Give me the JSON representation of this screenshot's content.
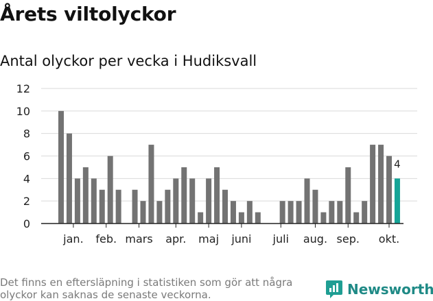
{
  "title": "Årets viltolyckor",
  "subtitle": "Antal olyckor per vecka i Hudiksvall",
  "note": "Det finns en eftersläpning i statistiken som gör att några olyckor kan saknas de senaste veckorna.",
  "brand": {
    "name": "Newsworthy",
    "color": "#1f9e93"
  },
  "colors": {
    "bar": "#737373",
    "highlight": "#15a497",
    "grid": "#d9d9d9"
  },
  "chart_data": {
    "type": "bar",
    "x": [
      1,
      2,
      3,
      4,
      5,
      6,
      7,
      8,
      9,
      10,
      11,
      12,
      13,
      14,
      15,
      16,
      17,
      18,
      19,
      20,
      21,
      22,
      23,
      24,
      25,
      26,
      27,
      28,
      29,
      30,
      31,
      32,
      33,
      34,
      35,
      36,
      37,
      38,
      39,
      40,
      41,
      42
    ],
    "values": [
      10,
      8,
      4,
      5,
      4,
      3,
      6,
      3,
      0,
      3,
      2,
      7,
      2,
      3,
      4,
      5,
      4,
      1,
      4,
      5,
      3,
      2,
      1,
      2,
      1,
      0,
      0,
      2,
      2,
      2,
      4,
      3,
      1,
      2,
      2,
      5,
      1,
      2,
      7,
      7,
      6,
      4
    ],
    "highlight_index": 41,
    "highlight_label": "4",
    "ylim": [
      0,
      12
    ],
    "yticks": [
      "0",
      "2",
      "4",
      "6",
      "8",
      "10",
      "12"
    ],
    "month_labels": [
      {
        "label": "jan.",
        "week": 2.5
      },
      {
        "label": "feb.",
        "week": 6.5
      },
      {
        "label": "mars",
        "week": 10.5
      },
      {
        "label": "apr.",
        "week": 15.0
      },
      {
        "label": "maj",
        "week": 19.0
      },
      {
        "label": "juni",
        "week": 23.0
      },
      {
        "label": "juli",
        "week": 27.8
      },
      {
        "label": "aug.",
        "week": 32.0
      },
      {
        "label": "sep.",
        "week": 36.0
      },
      {
        "label": "okt.",
        "week": 41.0
      }
    ],
    "grid": true,
    "xlabel": "",
    "ylabel": ""
  }
}
